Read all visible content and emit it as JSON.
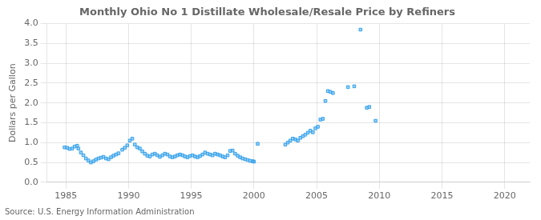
{
  "chart_data": {
    "type": "scatter",
    "title": "Monthly Ohio No 1 Distillate Wholesale/Resale Price by Refiners",
    "ylabel": "Dollars per Gallon",
    "annotations": [
      "Source: U.S. Energy Information Administration"
    ],
    "marker": "square",
    "grid": true,
    "xlim": [
      1983.5,
      2022
    ],
    "ylim": [
      0.0,
      4.0
    ],
    "xticks": [
      1985,
      1990,
      1995,
      2000,
      2005,
      2010,
      2015,
      2020
    ],
    "yticks": [
      {
        "value": 0,
        "label": "0.0"
      },
      0.5,
      {
        "value": 1,
        "label": "1.0"
      },
      1.5,
      {
        "value": 2,
        "label": "2.0"
      },
      2.5,
      {
        "value": 3,
        "label": "3.0"
      },
      3.5,
      {
        "value": 4,
        "label": "4.0"
      }
    ],
    "x": [
      1984.9,
      1985.1,
      1985.3,
      1985.5,
      1985.7,
      1985.9,
      1986.0,
      1986.2,
      1986.4,
      1986.6,
      1986.8,
      1987.0,
      1987.2,
      1987.4,
      1987.6,
      1987.8,
      1988.0,
      1988.2,
      1988.4,
      1988.6,
      1988.8,
      1989.0,
      1989.2,
      1989.5,
      1989.7,
      1989.9,
      1990.1,
      1990.3,
      1990.5,
      1990.7,
      1990.9,
      1991.1,
      1991.3,
      1991.5,
      1991.7,
      1991.9,
      1992.1,
      1992.3,
      1992.5,
      1992.7,
      1992.9,
      1993.1,
      1993.3,
      1993.5,
      1993.7,
      1993.9,
      1994.1,
      1994.3,
      1994.5,
      1994.7,
      1994.9,
      1995.1,
      1995.3,
      1995.5,
      1995.7,
      1995.9,
      1996.1,
      1996.3,
      1996.5,
      1996.7,
      1996.9,
      1997.1,
      1997.3,
      1997.5,
      1997.7,
      1997.9,
      1998.1,
      1998.3,
      1998.5,
      1998.7,
      1998.9,
      1999.1,
      1999.3,
      1999.5,
      1999.7,
      1999.9,
      2000.0,
      2000.3,
      2002.5,
      2002.7,
      2002.9,
      2003.1,
      2003.3,
      2003.5,
      2003.7,
      2003.9,
      2004.1,
      2004.3,
      2004.5,
      2004.7,
      2004.9,
      2005.1,
      2005.3,
      2005.5,
      2005.7,
      2005.9,
      2006.1,
      2006.3,
      2007.5,
      2008.0,
      2008.5,
      2009.0,
      2009.2,
      2009.7
    ],
    "values": [
      0.88,
      0.87,
      0.84,
      0.85,
      0.9,
      0.92,
      0.85,
      0.75,
      0.68,
      0.6,
      0.55,
      0.5,
      0.53,
      0.57,
      0.6,
      0.62,
      0.64,
      0.6,
      0.58,
      0.63,
      0.67,
      0.7,
      0.73,
      0.82,
      0.87,
      0.93,
      1.05,
      1.1,
      0.95,
      0.88,
      0.85,
      0.78,
      0.72,
      0.67,
      0.65,
      0.7,
      0.72,
      0.68,
      0.64,
      0.68,
      0.72,
      0.7,
      0.65,
      0.63,
      0.65,
      0.68,
      0.7,
      0.68,
      0.65,
      0.63,
      0.66,
      0.68,
      0.65,
      0.63,
      0.66,
      0.7,
      0.75,
      0.72,
      0.7,
      0.68,
      0.72,
      0.7,
      0.68,
      0.65,
      0.63,
      0.68,
      0.79,
      0.8,
      0.72,
      0.67,
      0.63,
      0.6,
      0.58,
      0.56,
      0.54,
      0.53,
      0.52,
      0.97,
      0.95,
      1.0,
      1.05,
      1.1,
      1.08,
      1.05,
      1.12,
      1.16,
      1.2,
      1.25,
      1.3,
      1.26,
      1.36,
      1.4,
      1.58,
      1.6,
      2.05,
      2.3,
      2.28,
      2.25,
      2.4,
      2.42,
      3.85,
      1.88,
      1.9,
      1.55
    ]
  }
}
